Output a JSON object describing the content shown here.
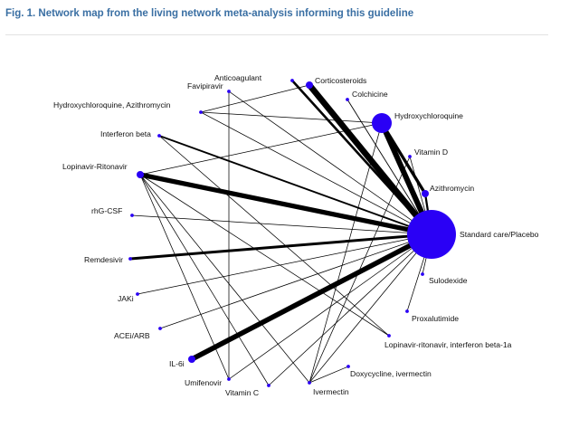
{
  "figure": {
    "title": "Fig. 1. Network map from the living network meta-analysis informing this guideline"
  },
  "colors": {
    "title": "#3a6fa3",
    "node": "#2a00f5",
    "edge": "#000000"
  },
  "nodes": [
    {
      "id": "anticoagulant",
      "label": "Anticoagulant",
      "size": 1
    },
    {
      "id": "favipiravir",
      "label": "Favipiravir",
      "size": 1
    },
    {
      "id": "corticosteroids",
      "label": "Corticosteroids",
      "size": 2
    },
    {
      "id": "colchicine",
      "label": "Colchicine",
      "size": 1
    },
    {
      "id": "hcq_azithro",
      "label": "Hydroxychloroquine, Azithromycin",
      "size": 1
    },
    {
      "id": "hydroxychloroquine",
      "label": "Hydroxychloroquine",
      "size": 6
    },
    {
      "id": "interferon_beta",
      "label": "Interferon beta",
      "size": 1
    },
    {
      "id": "vitamin_d",
      "label": "Vitamin D",
      "size": 1
    },
    {
      "id": "lopinavir_ritonavir",
      "label": "Lopinavir-Ritonavir",
      "size": 2
    },
    {
      "id": "azithromycin",
      "label": "Azithromycin",
      "size": 2
    },
    {
      "id": "rhg_csf",
      "label": "rhG-CSF",
      "size": 1
    },
    {
      "id": "standard_care",
      "label": "Standard care/Placebo",
      "size": 14
    },
    {
      "id": "remdesivir",
      "label": "Remdesivir",
      "size": 1
    },
    {
      "id": "sulodexide",
      "label": "Sulodexide",
      "size": 1
    },
    {
      "id": "jaki",
      "label": "JAKi",
      "size": 1
    },
    {
      "id": "proxalutimide",
      "label": "Proxalutimide",
      "size": 1
    },
    {
      "id": "acei_arb",
      "label": "ACEi/ARB",
      "size": 1
    },
    {
      "id": "lopinavir_ifn",
      "label": "Lopinavir-ritonavir, interferon beta-1a",
      "size": 1
    },
    {
      "id": "il6i",
      "label": "IL-6i",
      "size": 2
    },
    {
      "id": "doxy_iver",
      "label": "Doxycycline, ivermectin",
      "size": 1
    },
    {
      "id": "umifenovir",
      "label": "Umifenovir",
      "size": 1
    },
    {
      "id": "vitamin_c",
      "label": "Vitamin C",
      "size": 1
    },
    {
      "id": "ivermectin",
      "label": "Ivermectin",
      "size": 1
    }
  ],
  "edges": [
    {
      "a": "standard_care",
      "b": "corticosteroids",
      "w": 9
    },
    {
      "a": "standard_care",
      "b": "hydroxychloroquine",
      "w": 8
    },
    {
      "a": "standard_care",
      "b": "lopinavir_ritonavir",
      "w": 7
    },
    {
      "a": "standard_care",
      "b": "il6i",
      "w": 7.5
    },
    {
      "a": "standard_care",
      "b": "remdesivir",
      "w": 4
    },
    {
      "a": "standard_care",
      "b": "anticoagulant",
      "w": 3.5
    },
    {
      "a": "standard_care",
      "b": "azithromycin",
      "w": 3
    },
    {
      "a": "standard_care",
      "b": "interferon_beta",
      "w": 2.5
    },
    {
      "a": "standard_care",
      "b": "colchicine",
      "w": 1.2
    },
    {
      "a": "standard_care",
      "b": "favipiravir",
      "w": 1
    },
    {
      "a": "standard_care",
      "b": "hcq_azithro",
      "w": 1
    },
    {
      "a": "standard_care",
      "b": "vitamin_d",
      "w": 1
    },
    {
      "a": "standard_care",
      "b": "rhg_csf",
      "w": 1
    },
    {
      "a": "standard_care",
      "b": "jaki",
      "w": 1
    },
    {
      "a": "standard_care",
      "b": "acei_arb",
      "w": 1
    },
    {
      "a": "standard_care",
      "b": "sulodexide",
      "w": 1
    },
    {
      "a": "standard_care",
      "b": "proxalutimide",
      "w": 1
    },
    {
      "a": "standard_care",
      "b": "umifenovir",
      "w": 1
    },
    {
      "a": "standard_care",
      "b": "vitamin_c",
      "w": 1
    },
    {
      "a": "standard_care",
      "b": "ivermectin",
      "w": 1
    },
    {
      "a": "hydroxychloroquine",
      "b": "azithromycin",
      "w": 4.5
    },
    {
      "a": "hydroxychloroquine",
      "b": "hcq_azithro",
      "w": 1
    },
    {
      "a": "hydroxychloroquine",
      "b": "lopinavir_ritonavir",
      "w": 1
    },
    {
      "a": "hydroxychloroquine",
      "b": "ivermectin",
      "w": 1
    },
    {
      "a": "corticosteroids",
      "b": "hcq_azithro",
      "w": 1
    },
    {
      "a": "lopinavir_ritonavir",
      "b": "lopinavir_ifn",
      "w": 1
    },
    {
      "a": "lopinavir_ritonavir",
      "b": "vitamin_c",
      "w": 1
    },
    {
      "a": "lopinavir_ritonavir",
      "b": "ivermectin",
      "w": 1
    },
    {
      "a": "lopinavir_ritonavir",
      "b": "umifenovir",
      "w": 1
    },
    {
      "a": "interferon_beta",
      "b": "lopinavir_ifn",
      "w": 1
    },
    {
      "a": "favipiravir",
      "b": "umifenovir",
      "w": 1
    },
    {
      "a": "ivermectin",
      "b": "doxy_iver",
      "w": 1
    },
    {
      "a": "ivermectin",
      "b": "vitamin_d",
      "w": 1
    }
  ]
}
